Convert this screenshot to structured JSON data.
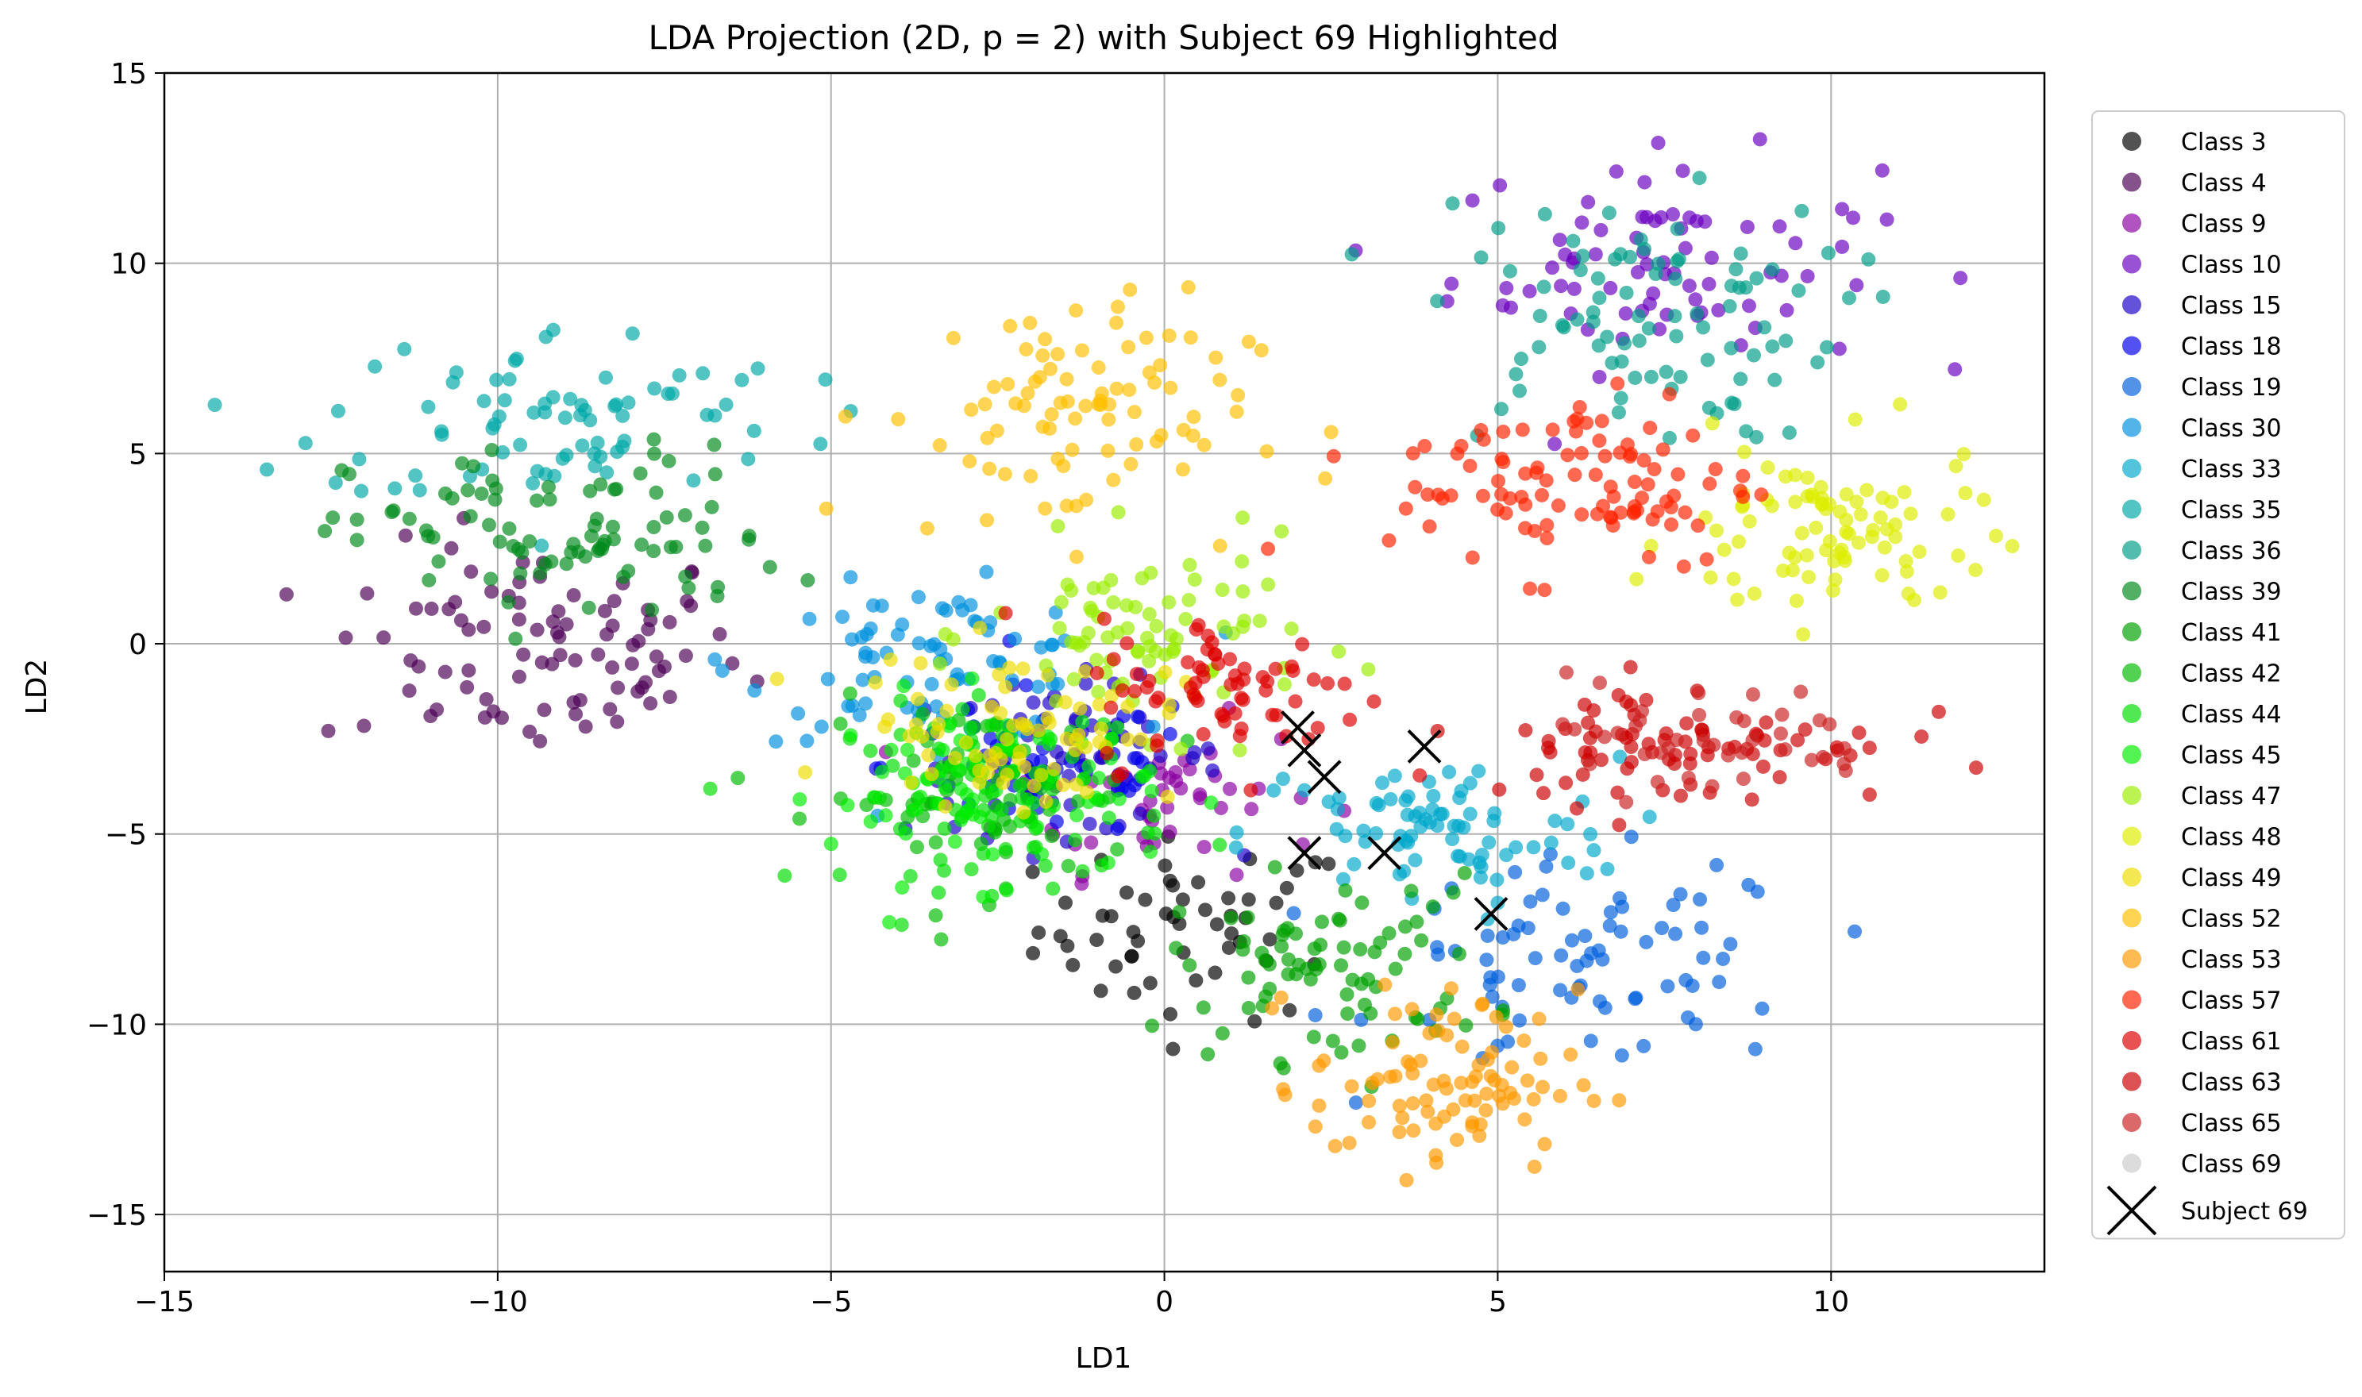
{
  "chart_data": {
    "type": "scatter",
    "title": "LDA Projection (2D, p = 2) with Subject 69 Highlighted",
    "xlabel": "LD1",
    "ylabel": "LD2",
    "xlim": [
      -15,
      13.2
    ],
    "ylim": [
      -16.5,
      15
    ],
    "xticks": [
      -15,
      -10,
      -5,
      0,
      5,
      10
    ],
    "yticks": [
      -15,
      -10,
      -5,
      0,
      5,
      10,
      15
    ],
    "xtick_labels": [
      "−15",
      "−10",
      "−5",
      "0",
      "5",
      "10"
    ],
    "ytick_labels": [
      "−15",
      "−10",
      "−5",
      "0",
      "5",
      "10",
      "15"
    ],
    "grid": true,
    "legend_placement": "outside right",
    "series": [
      {
        "name": "Class 3",
        "color": "#000000",
        "center": [
          0.5,
          -7.5
        ],
        "spread": [
          1.2,
          1.2
        ],
        "n": 55
      },
      {
        "name": "Class 4",
        "color": "#4b0055",
        "center": [
          -9.5,
          -0.2
        ],
        "spread": [
          1.6,
          1.4
        ],
        "n": 90
      },
      {
        "name": "Class 9",
        "color": "#8a00a0",
        "center": [
          0.0,
          -4.0
        ],
        "spread": [
          1.2,
          1.0
        ],
        "n": 50
      },
      {
        "name": "Class 10",
        "color": "#6a00c0",
        "center": [
          7.5,
          10.0
        ],
        "spread": [
          1.6,
          1.4
        ],
        "n": 80
      },
      {
        "name": "Class 15",
        "color": "#1a00c8",
        "center": [
          -1.5,
          -3.0
        ],
        "spread": [
          1.2,
          1.0
        ],
        "n": 70
      },
      {
        "name": "Class 18",
        "color": "#0000ee",
        "center": [
          -1.8,
          -3.2
        ],
        "spread": [
          1.2,
          1.0
        ],
        "n": 50
      },
      {
        "name": "Class 19",
        "color": "#0060dd",
        "center": [
          6.5,
          -8.5
        ],
        "spread": [
          1.6,
          1.4
        ],
        "n": 80
      },
      {
        "name": "Class 30",
        "color": "#0090dd",
        "center": [
          -3.5,
          -0.5
        ],
        "spread": [
          1.4,
          1.0
        ],
        "n": 80
      },
      {
        "name": "Class 33",
        "color": "#00a8cc",
        "center": [
          4.0,
          -5.0
        ],
        "spread": [
          1.4,
          1.0
        ],
        "n": 80
      },
      {
        "name": "Class 35",
        "color": "#00a8a8",
        "center": [
          -9.0,
          6.0
        ],
        "spread": [
          1.8,
          1.2
        ],
        "n": 80
      },
      {
        "name": "Class 36",
        "color": "#009d88",
        "center": [
          7.0,
          8.5
        ],
        "spread": [
          1.6,
          1.6
        ],
        "n": 90
      },
      {
        "name": "Class 39",
        "color": "#008a1a",
        "center": [
          -9.0,
          2.8
        ],
        "spread": [
          1.6,
          1.2
        ],
        "n": 90
      },
      {
        "name": "Class 41",
        "color": "#00a000",
        "center": [
          2.5,
          -8.5
        ],
        "spread": [
          1.2,
          1.2
        ],
        "n": 80
      },
      {
        "name": "Class 42",
        "color": "#00bb00",
        "center": [
          -2.8,
          -4.0
        ],
        "spread": [
          1.2,
          1.2
        ],
        "n": 70
      },
      {
        "name": "Class 44",
        "color": "#00dd00",
        "center": [
          -2.3,
          -4.0
        ],
        "spread": [
          1.2,
          1.2
        ],
        "n": 80
      },
      {
        "name": "Class 45",
        "color": "#00ee00",
        "center": [
          -2.6,
          -3.8
        ],
        "spread": [
          1.2,
          1.2
        ],
        "n": 80
      },
      {
        "name": "Class 47",
        "color": "#99ee00",
        "center": [
          -0.2,
          0.2
        ],
        "spread": [
          1.2,
          1.2
        ],
        "n": 80
      },
      {
        "name": "Class 48",
        "color": "#ddee00",
        "center": [
          10.0,
          2.8
        ],
        "spread": [
          1.2,
          1.2
        ],
        "n": 90
      },
      {
        "name": "Class 49",
        "color": "#eedd00",
        "center": [
          -2.2,
          -2.2
        ],
        "spread": [
          1.2,
          1.0
        ],
        "n": 80
      },
      {
        "name": "Class 52",
        "color": "#ffc000",
        "center": [
          -1.5,
          6.0
        ],
        "spread": [
          1.4,
          1.6
        ],
        "n": 90
      },
      {
        "name": "Class 53",
        "color": "#ff9900",
        "center": [
          4.2,
          -11.5
        ],
        "spread": [
          1.0,
          1.2
        ],
        "n": 90
      },
      {
        "name": "Class 57",
        "color": "#ff2200",
        "center": [
          6.2,
          4.3
        ],
        "spread": [
          1.4,
          1.2
        ],
        "n": 100
      },
      {
        "name": "Class 61",
        "color": "#dd0000",
        "center": [
          1.0,
          -1.3
        ],
        "spread": [
          1.0,
          1.0
        ],
        "n": 70
      },
      {
        "name": "Class 63",
        "color": "#cc0000",
        "center": [
          7.8,
          -2.6
        ],
        "spread": [
          1.6,
          0.8
        ],
        "n": 80
      },
      {
        "name": "Class 65",
        "color": "#cc2222",
        "center": [
          8.0,
          -2.5
        ],
        "spread": [
          1.4,
          0.8
        ],
        "n": 40
      },
      {
        "name": "Class 69",
        "color": "#cccccc",
        "center": [
          3.0,
          -4.5
        ],
        "spread": [
          0.6,
          0.6
        ],
        "n": 0
      }
    ],
    "highlight": {
      "name": "Subject 69",
      "color": "#000000",
      "points": [
        [
          2.0,
          -2.2
        ],
        [
          2.1,
          -2.8
        ],
        [
          2.4,
          -3.5
        ],
        [
          3.9,
          -2.7
        ],
        [
          2.1,
          -5.5
        ],
        [
          3.3,
          -5.5
        ],
        [
          4.9,
          -7.1
        ]
      ]
    }
  }
}
